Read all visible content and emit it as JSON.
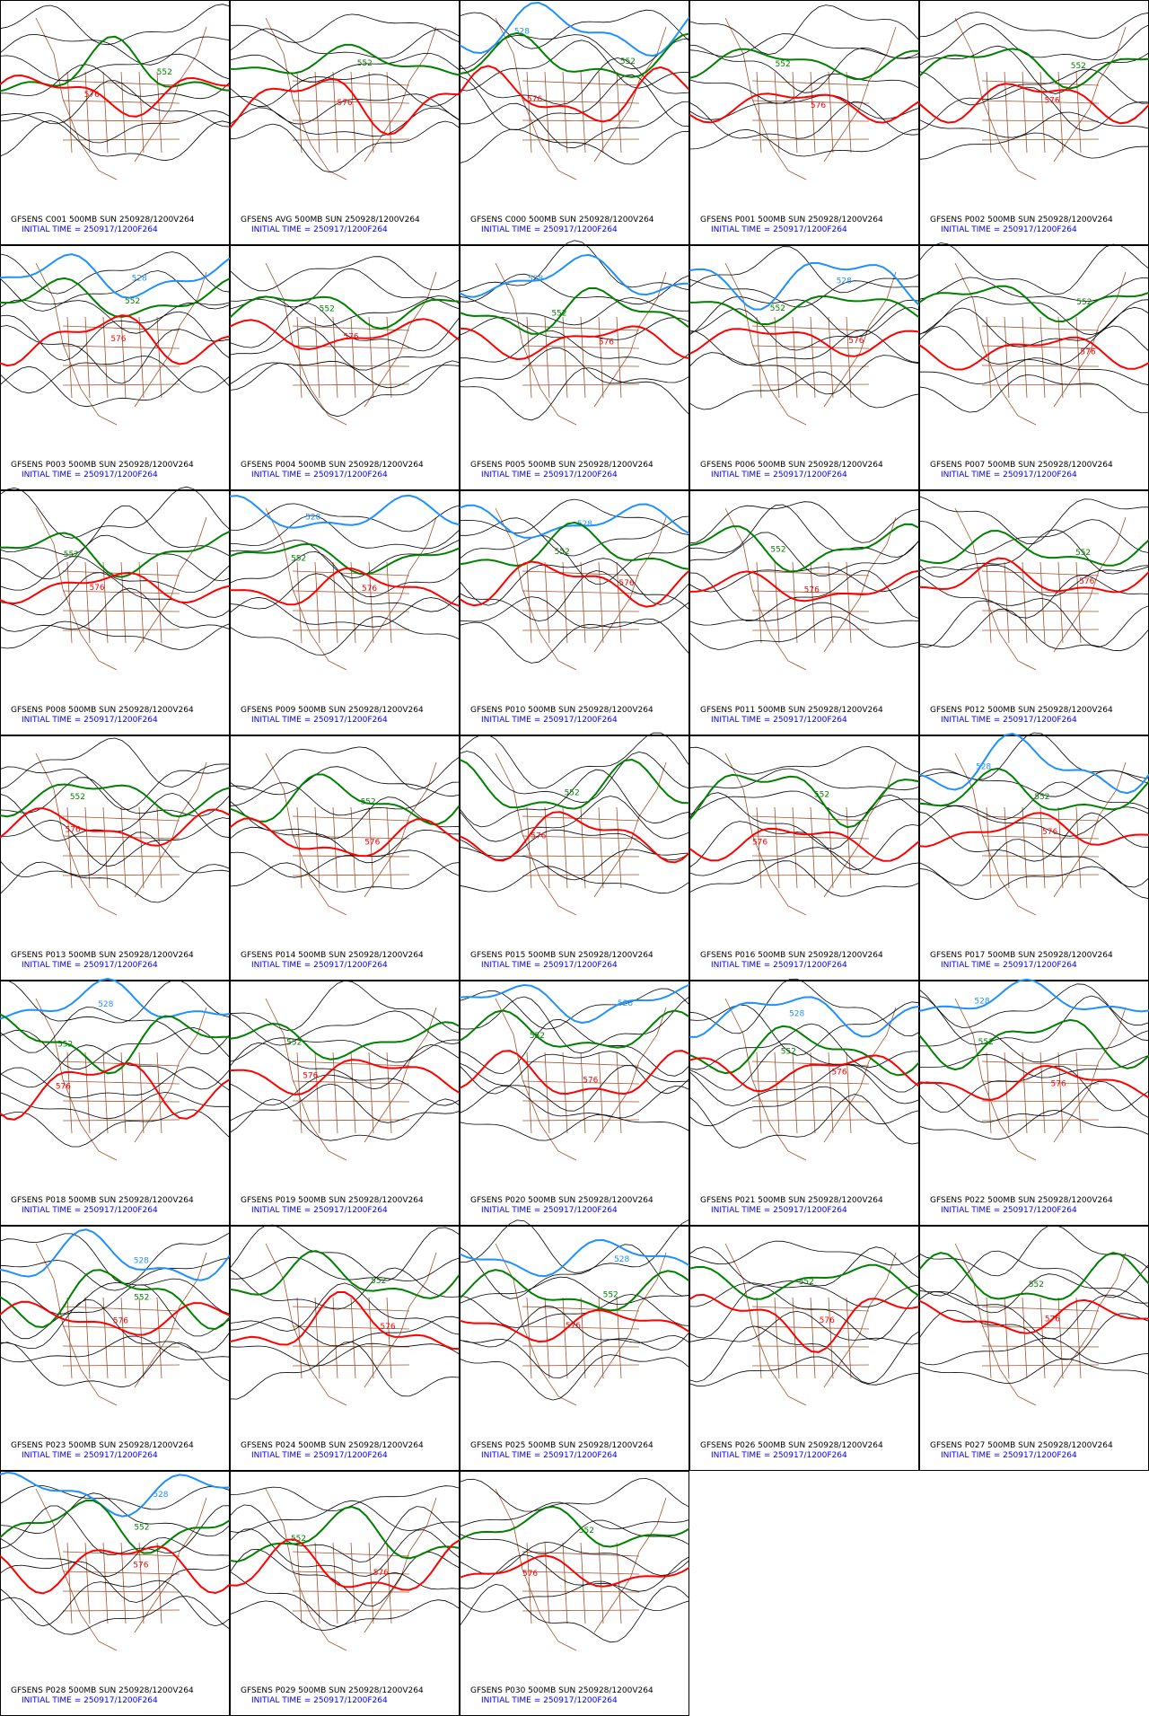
{
  "contour_levels": [
    {
      "label": "528",
      "color": "#1e90ff"
    },
    {
      "label": "552",
      "color": "#008000"
    },
    {
      "label": "576",
      "color": "#ff0000"
    }
  ],
  "panels": [
    {
      "line1": "GFSENS C001 500MB SUN 250928/1200V264",
      "line2": "INITIAL TIME = 250917/1200F264"
    },
    {
      "line1": "GFSENS AVG 500MB SUN 250928/1200V264",
      "line2": "INITIAL TIME = 250917/1200F264"
    },
    {
      "line1": "GFSENS C000 500MB SUN 250928/1200V264",
      "line2": "INITIAL TIME = 250917/1200F264"
    },
    {
      "line1": "GFSENS P001 500MB SUN 250928/1200V264",
      "line2": "INITIAL TIME = 250917/1200F264"
    },
    {
      "line1": "GFSENS P002 500MB SUN 250928/1200V264",
      "line2": "INITIAL TIME = 250917/1200F264"
    },
    {
      "line1": "GFSENS P003 500MB SUN 250928/1200V264",
      "line2": "INITIAL TIME = 250917/1200F264"
    },
    {
      "line1": "GFSENS P004 500MB SUN 250928/1200V264",
      "line2": "INITIAL TIME = 250917/1200F264"
    },
    {
      "line1": "GFSENS P005 500MB SUN 250928/1200V264",
      "line2": "INITIAL TIME = 250917/1200F264"
    },
    {
      "line1": "GFSENS P006 500MB SUN 250928/1200V264",
      "line2": "INITIAL TIME = 250917/1200F264"
    },
    {
      "line1": "GFSENS P007 500MB SUN 250928/1200V264",
      "line2": "INITIAL TIME = 250917/1200F264"
    },
    {
      "line1": "GFSENS P008 500MB SUN 250928/1200V264",
      "line2": "INITIAL TIME = 250917/1200F264"
    },
    {
      "line1": "GFSENS P009 500MB SUN 250928/1200V264",
      "line2": "INITIAL TIME = 250917/1200F264"
    },
    {
      "line1": "GFSENS P010 500MB SUN 250928/1200V264",
      "line2": "INITIAL TIME = 250917/1200F264"
    },
    {
      "line1": "GFSENS P011 500MB SUN 250928/1200V264",
      "line2": "INITIAL TIME = 250917/1200F264"
    },
    {
      "line1": "GFSENS P012 500MB SUN 250928/1200V264",
      "line2": "INITIAL TIME = 250917/1200F264"
    },
    {
      "line1": "GFSENS P013 500MB SUN 250928/1200V264",
      "line2": "INITIAL TIME = 250917/1200F264"
    },
    {
      "line1": "GFSENS P014 500MB SUN 250928/1200V264",
      "line2": "INITIAL TIME = 250917/1200F264"
    },
    {
      "line1": "GFSENS P015 500MB SUN 250928/1200V264",
      "line2": "INITIAL TIME = 250917/1200F264"
    },
    {
      "line1": "GFSENS P016 500MB SUN 250928/1200V264",
      "line2": "INITIAL TIME = 250917/1200F264"
    },
    {
      "line1": "GFSENS P017 500MB SUN 250928/1200V264",
      "line2": "INITIAL TIME = 250917/1200F264"
    },
    {
      "line1": "GFSENS P018 500MB SUN 250928/1200V264",
      "line2": "INITIAL TIME = 250917/1200F264"
    },
    {
      "line1": "GFSENS P019 500MB SUN 250928/1200V264",
      "line2": "INITIAL TIME = 250917/1200F264"
    },
    {
      "line1": "GFSENS P020 500MB SUN 250928/1200V264",
      "line2": "INITIAL TIME = 250917/1200F264"
    },
    {
      "line1": "GFSENS P021 500MB SUN 250928/1200V264",
      "line2": "INITIAL TIME = 250917/1200F264"
    },
    {
      "line1": "GFSENS P022 500MB SUN 250928/1200V264",
      "line2": "INITIAL TIME = 250917/1200F264"
    },
    {
      "line1": "GFSENS P023 500MB SUN 250928/1200V264",
      "line2": "INITIAL TIME = 250917/1200F264"
    },
    {
      "line1": "GFSENS P024 500MB SUN 250928/1200V264",
      "line2": "INITIAL TIME = 250917/1200F264"
    },
    {
      "line1": "GFSENS P025 500MB SUN 250928/1200V264",
      "line2": "INITIAL TIME = 250917/1200F264"
    },
    {
      "line1": "GFSENS P026 500MB SUN 250928/1200V264",
      "line2": "INITIAL TIME = 250917/1200F264"
    },
    {
      "line1": "GFSENS P027 500MB SUN 250928/1200V264",
      "line2": "INITIAL TIME = 250917/1200F264"
    },
    {
      "line1": "GFSENS P028 500MB SUN 250928/1200V264",
      "line2": "INITIAL TIME = 250917/1200F264"
    },
    {
      "line1": "GFSENS P029 500MB SUN 250928/1200V264",
      "line2": "INITIAL TIME = 250917/1200F264"
    },
    {
      "line1": "GFSENS P030 500MB SUN 250928/1200V264",
      "line2": "INITIAL TIME = 250917/1200F264"
    }
  ]
}
